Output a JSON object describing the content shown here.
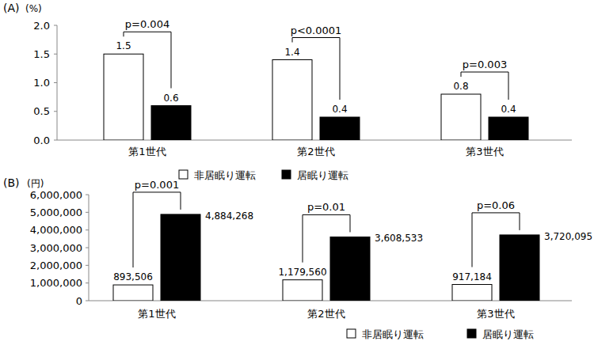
{
  "chart_data": [
    {
      "type": "bar",
      "title": "(A)",
      "ylabel": "(%)",
      "categories": [
        "第1世代",
        "第2世代",
        "第3世代"
      ],
      "series": [
        {
          "name": "非居眠り運転",
          "color": "#ffffff",
          "values": [
            1.5,
            1.4,
            0.8
          ]
        },
        {
          "name": "居眠り運転",
          "color": "#000000",
          "values": [
            0.6,
            0.4,
            0.4
          ]
        }
      ],
      "annotations": [
        "p=0.004",
        "p<0.0001",
        "p=0.003"
      ],
      "ylim": [
        0,
        2
      ],
      "yticks": [
        {
          "value": 0,
          "label": "0.0"
        },
        {
          "value": 0.5,
          "label": "0.5"
        },
        {
          "value": 1,
          "label": "1.0"
        },
        {
          "value": 1.5,
          "label": "1.5"
        },
        {
          "value": 2,
          "label": "2.0"
        }
      ],
      "grid": false,
      "legend": "bottom",
      "data_labels": true
    },
    {
      "type": "bar",
      "title": "(B)",
      "ylabel": "(円)",
      "categories": [
        "第1世代",
        "第2世代",
        "第3世代"
      ],
      "series": [
        {
          "name": "非居眠り運転",
          "color": "#ffffff",
          "values": [
            893506,
            1179560,
            917184
          ],
          "value_labels": [
            "893,506",
            "1,179,560",
            "917,184"
          ]
        },
        {
          "name": "居眠り運転",
          "color": "#000000",
          "values": [
            4884268,
            3608533,
            3720095
          ],
          "value_labels": [
            "4,884,268",
            "3,608,533",
            "3,720,095"
          ]
        }
      ],
      "annotations": [
        "p=0.001",
        "p=0.01",
        "p=0.06"
      ],
      "ylim": [
        0,
        6000000
      ],
      "yticks": [
        0,
        {
          "value": 1000000,
          "label": "1,000,000"
        },
        {
          "value": 2000000,
          "label": "2,000,000"
        },
        {
          "value": 3000000,
          "label": "3,000,000"
        },
        {
          "value": 4000000,
          "label": "4,000,000"
        },
        {
          "value": 5000000,
          "label": "5,000,000"
        },
        {
          "value": 6000000,
          "label": "6,000,000"
        }
      ],
      "grid": false,
      "legend": "bottom",
      "data_labels": true
    }
  ]
}
